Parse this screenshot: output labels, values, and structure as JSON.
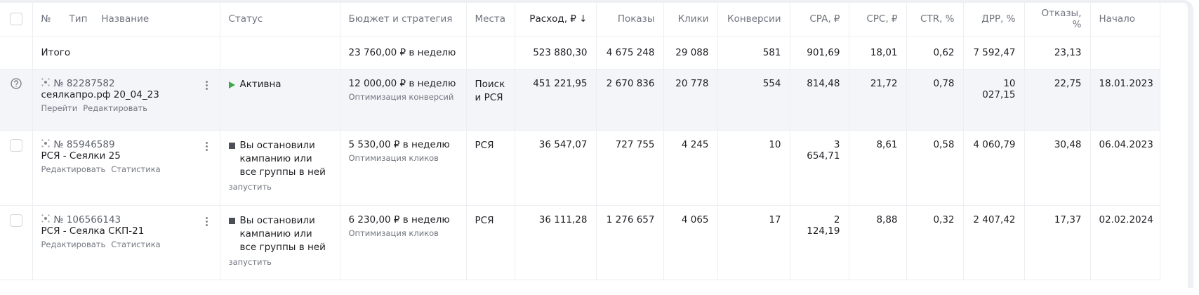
{
  "header": {
    "columns": [
      "№",
      "Тип",
      "Название",
      "Статус",
      "Бюджет и стратегия",
      "Места",
      "Расход, ₽ ↓",
      "Показы",
      "Клики",
      "Конверсии",
      "CPA, ₽",
      "CPC, ₽",
      "CTR, %",
      "ДРР, %",
      "Отказы, %",
      "Начало"
    ]
  },
  "totals": {
    "label": "Итого",
    "budget": "23 760,00 ₽ в неделю",
    "metrics": [
      "523 880,30",
      "4 675 248",
      "29 088",
      "581",
      "901,69",
      "18,01",
      "0,62",
      "7 592,47",
      "23,13"
    ]
  },
  "rows": [
    {
      "id": "№ 82287582",
      "name": "сеялкапро.рф 20_04_23",
      "links": [
        "Перейти",
        "Редактировать"
      ],
      "status": "Активна",
      "budget": "12 000,00 ₽ в неделю",
      "strategy": "Оптимизация конверсий",
      "places": "Поиск и РСЯ",
      "metrics": [
        "451 221,95",
        "2 670 836",
        "20 778",
        "554",
        "814,48",
        "21,72",
        "0,78",
        "10 027,15",
        "22,75",
        "18.01.2023"
      ]
    },
    {
      "id": "№ 85946589",
      "name": "РСЯ - Сеялки 25",
      "links": [
        "Редактировать",
        "Статистика"
      ],
      "status": "Вы остановили кампанию или все группы в ней",
      "action": "запустить",
      "budget": "5 530,00 ₽ в неделю",
      "strategy": "Оптимизация кликов",
      "places": "РСЯ",
      "metrics": [
        "36 547,07",
        "727 755",
        "4 245",
        "10",
        "3 654,71",
        "8,61",
        "0,58",
        "4 060,79",
        "30,48",
        "06.04.2023"
      ]
    },
    {
      "id": "№ 106566143",
      "name": "РСЯ - Сеялка СКП-21",
      "links": [
        "Редактировать",
        "Статистика"
      ],
      "status": "Вы остановили кампанию или все группы в ней",
      "action": "запустить",
      "budget": "6 230,00 ₽ в неделю",
      "strategy": "Оптимизация кликов",
      "places": "РСЯ",
      "metrics": [
        "36 111,28",
        "1 276 657",
        "4 065",
        "17",
        "2 124,19",
        "8,88",
        "0,32",
        "2 407,42",
        "17,37",
        "02.02.2024"
      ]
    }
  ]
}
